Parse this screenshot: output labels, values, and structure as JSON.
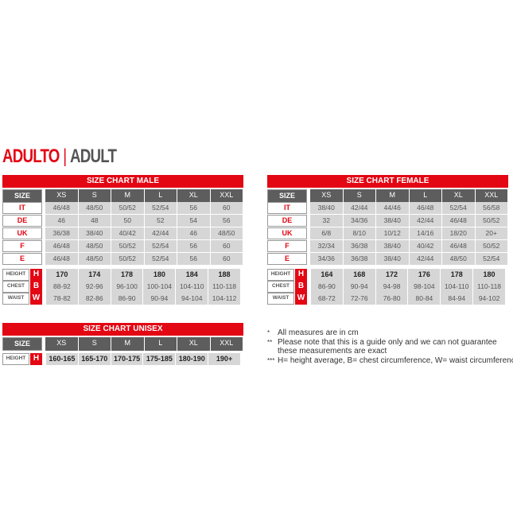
{
  "heading": {
    "primary": "ADULTO",
    "separator": "|",
    "secondary": "ADULT"
  },
  "colors": {
    "accent": "#e30613",
    "header": "#5d5d5d",
    "cell": "#d6d6d6"
  },
  "sizes": [
    "XS",
    "S",
    "M",
    "L",
    "XL",
    "XXL"
  ],
  "size_label": "SIZE",
  "male": {
    "title": "SIZE CHART MALE",
    "rows": [
      {
        "label": "IT",
        "values": [
          "46/48",
          "48/50",
          "50/52",
          "52/54",
          "56",
          "60"
        ]
      },
      {
        "label": "DE",
        "values": [
          "46",
          "48",
          "50",
          "52",
          "54",
          "56"
        ]
      },
      {
        "label": "UK",
        "values": [
          "36/38",
          "38/40",
          "40/42",
          "42/44",
          "46",
          "48/50"
        ]
      },
      {
        "label": "F",
        "values": [
          "46/48",
          "48/50",
          "50/52",
          "52/54",
          "56",
          "60"
        ]
      },
      {
        "label": "E",
        "values": [
          "46/48",
          "48/50",
          "50/52",
          "52/54",
          "56",
          "60"
        ]
      }
    ],
    "measures": [
      {
        "label": "HEIGHT",
        "letter": "H",
        "values": [
          "170",
          "174",
          "178",
          "180",
          "184",
          "188"
        ]
      },
      {
        "label": "CHEST",
        "letter": "B",
        "values": [
          "88-92",
          "92-96",
          "96-100",
          "100-104",
          "104-110",
          "110-118"
        ]
      },
      {
        "label": "WAIST",
        "letter": "W",
        "values": [
          "78-82",
          "82-86",
          "86-90",
          "90-94",
          "94-104",
          "104-112"
        ]
      }
    ]
  },
  "female": {
    "title": "SIZE CHART FEMALE",
    "rows": [
      {
        "label": "IT",
        "values": [
          "38/40",
          "42/44",
          "44/46",
          "46/48",
          "52/54",
          "56/58"
        ]
      },
      {
        "label": "DE",
        "values": [
          "32",
          "34/36",
          "38/40",
          "42/44",
          "46/48",
          "50/52"
        ]
      },
      {
        "label": "UK",
        "values": [
          "6/8",
          "8/10",
          "10/12",
          "14/16",
          "18/20",
          "20+"
        ]
      },
      {
        "label": "F",
        "values": [
          "32/34",
          "36/38",
          "38/40",
          "40/42",
          "46/48",
          "50/52"
        ]
      },
      {
        "label": "E",
        "values": [
          "34/36",
          "36/38",
          "38/40",
          "42/44",
          "48/50",
          "52/54"
        ]
      }
    ],
    "measures": [
      {
        "label": "HEIGHT",
        "letter": "H",
        "values": [
          "164",
          "168",
          "172",
          "176",
          "178",
          "180"
        ]
      },
      {
        "label": "CHEST",
        "letter": "B",
        "values": [
          "86-90",
          "90-94",
          "94-98",
          "98-104",
          "104-110",
          "110-118"
        ]
      },
      {
        "label": "WAIST",
        "letter": "W",
        "values": [
          "68-72",
          "72-76",
          "76-80",
          "80-84",
          "84-94",
          "94-102"
        ]
      }
    ]
  },
  "unisex": {
    "title": "SIZE CHART UNISEX",
    "rows": [],
    "measures": [
      {
        "label": "HEIGHT",
        "letter": "H",
        "values": [
          "160-165",
          "165-170",
          "170-175",
          "175-185",
          "180-190",
          "190+"
        ]
      }
    ]
  },
  "notes": [
    {
      "mark": "*",
      "text": "All measures are in cm"
    },
    {
      "mark": "**",
      "text": "Please note that this is a guide only and we can not guarantee"
    },
    {
      "mark": "",
      "text": "these measurements are exact"
    },
    {
      "mark": "***",
      "text": "H= height average, B= chest circumference, W= waist circumference"
    }
  ]
}
